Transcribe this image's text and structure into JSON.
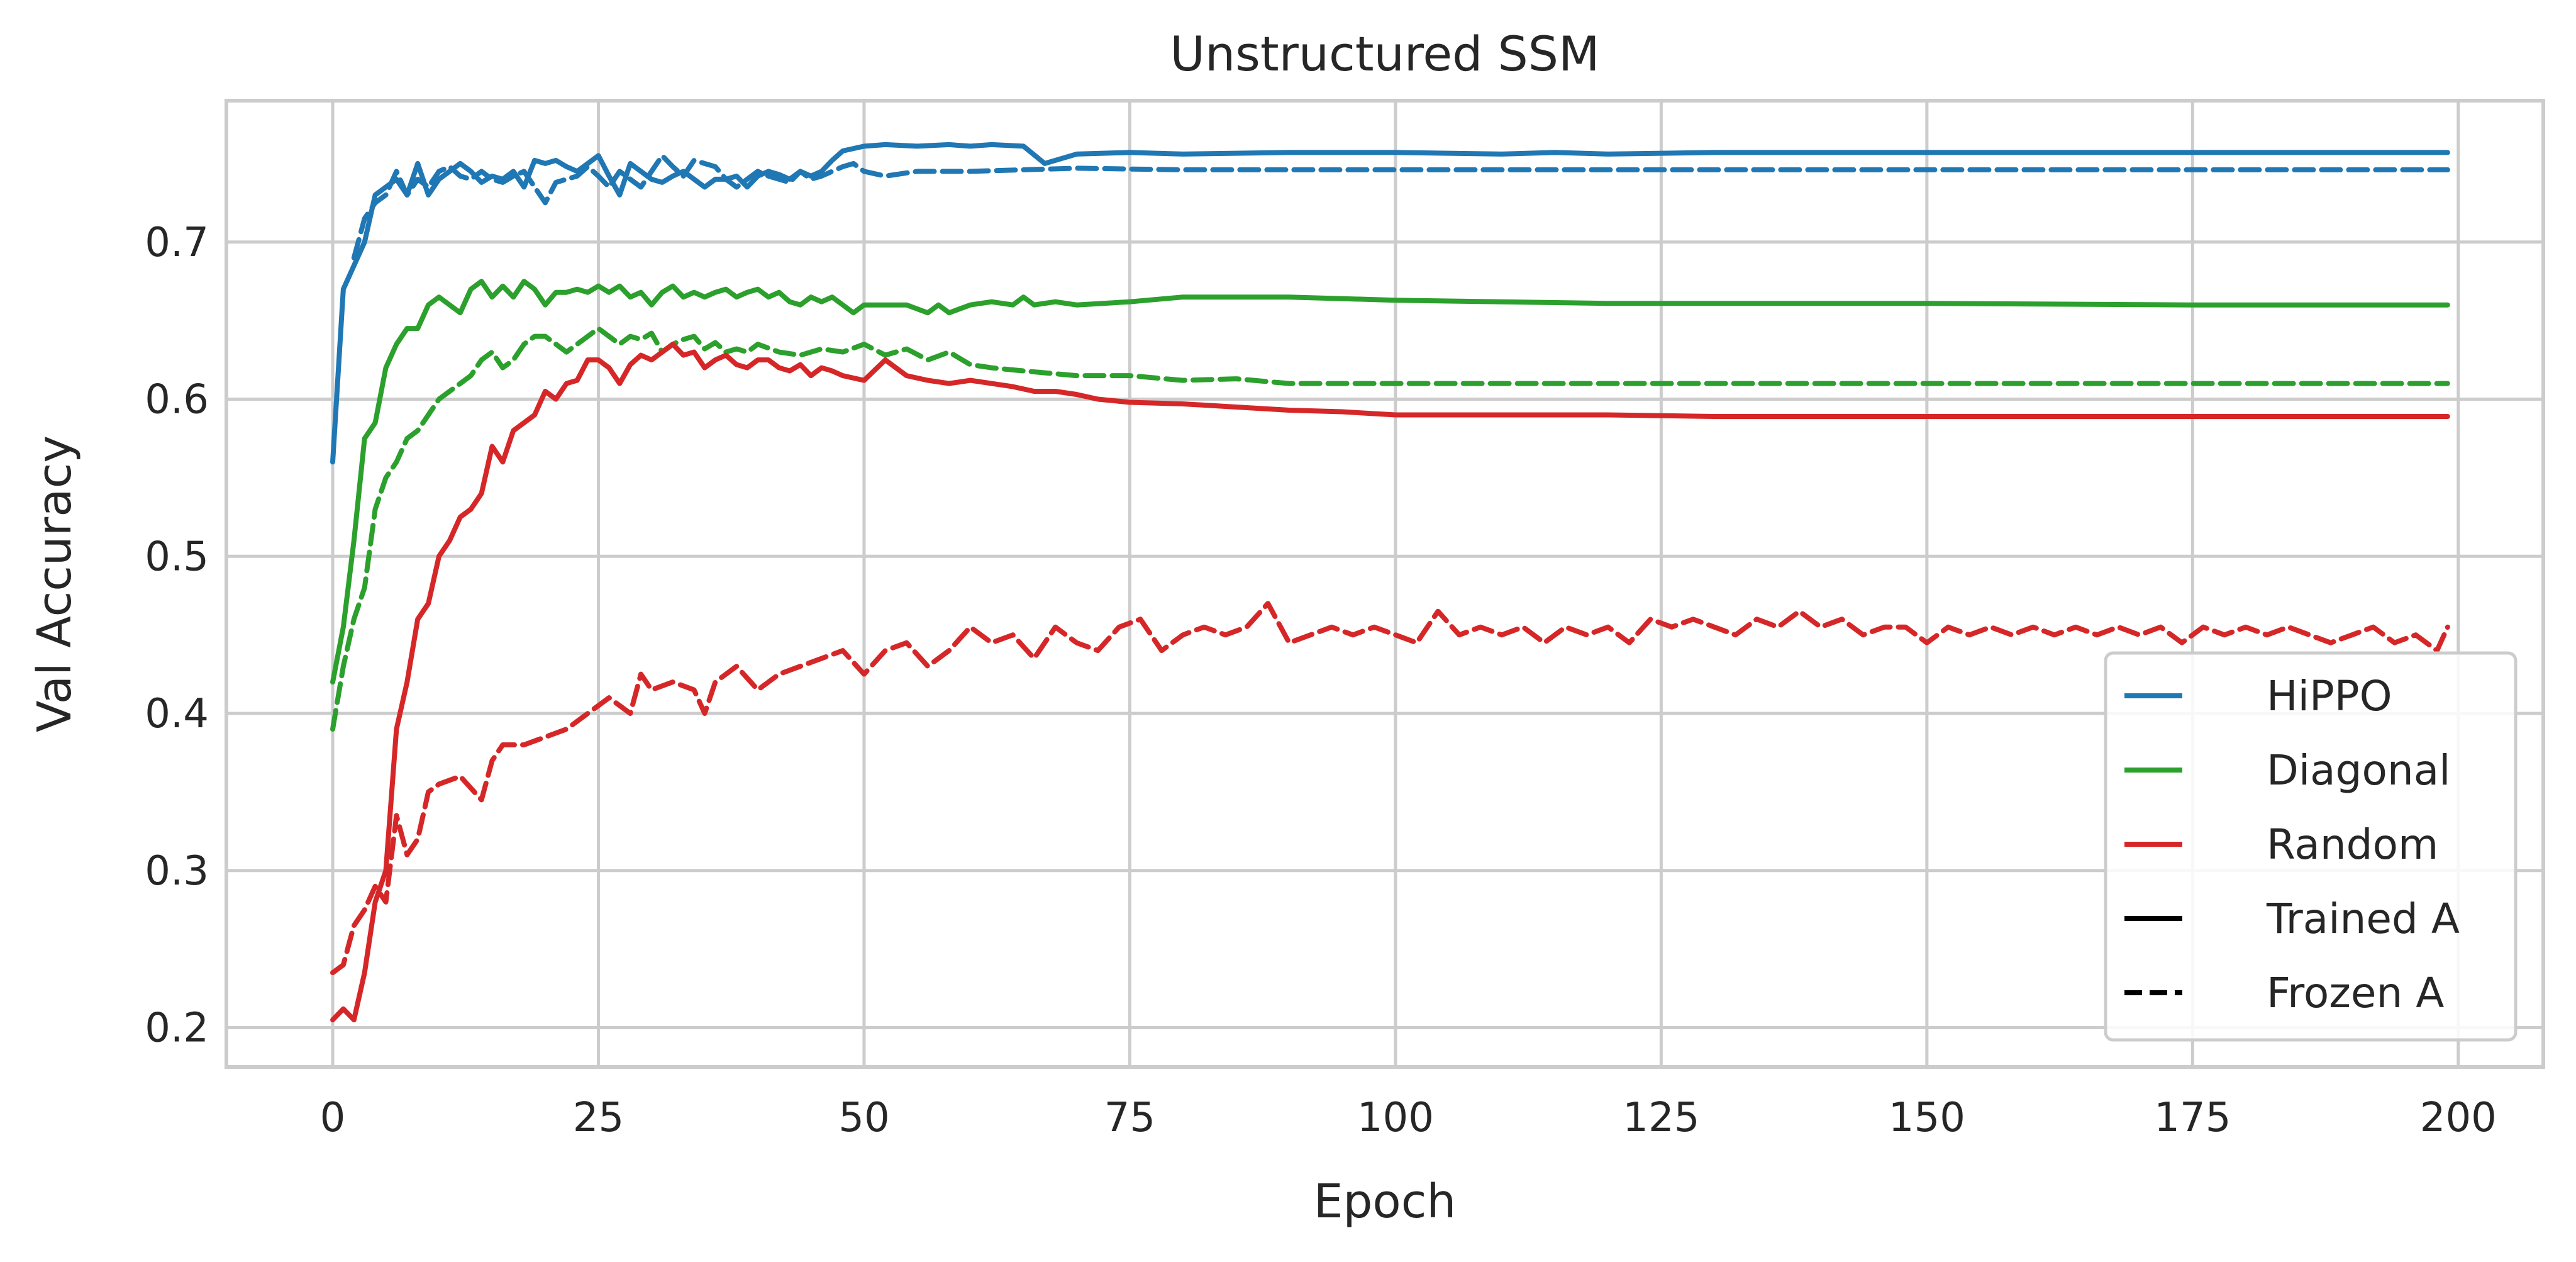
{
  "chart_data": {
    "type": "line",
    "title": "Unstructured SSM",
    "xlabel": "Epoch",
    "ylabel": "Val Accuracy",
    "xlim": [
      -10,
      208
    ],
    "ylim": [
      0.175,
      0.79
    ],
    "xticks": [
      0,
      25,
      50,
      75,
      100,
      125,
      150,
      175,
      200
    ],
    "yticks": [
      0.2,
      0.3,
      0.4,
      0.5,
      0.6,
      0.7
    ],
    "grid": true,
    "legend_position": "lower-right",
    "colors": {
      "HiPPO": "#1f77b4",
      "Diagonal": "#2ca02c",
      "Random": "#d62728",
      "black": "#000000"
    },
    "legend": [
      {
        "label": "HiPPO",
        "color": "#1f77b4",
        "style": "solid"
      },
      {
        "label": "Diagonal",
        "color": "#2ca02c",
        "style": "solid"
      },
      {
        "label": "Random",
        "color": "#d62728",
        "style": "solid"
      },
      {
        "label": "Trained A",
        "color": "#000000",
        "style": "solid"
      },
      {
        "label": "Frozen A",
        "color": "#000000",
        "style": "dashed"
      }
    ],
    "series": [
      {
        "name": "HiPPO (Trained A)",
        "color": "#1f77b4",
        "dashed": false,
        "x": [
          0,
          1,
          2,
          3,
          4,
          5,
          6,
          7,
          8,
          9,
          10,
          11,
          12,
          13,
          14,
          15,
          16,
          17,
          18,
          19,
          20,
          21,
          22,
          23,
          24,
          25,
          26,
          27,
          28,
          29,
          30,
          31,
          32,
          33,
          34,
          35,
          36,
          37,
          38,
          39,
          40,
          41,
          42,
          43,
          44,
          45,
          46,
          47,
          48,
          50,
          52,
          55,
          58,
          60,
          62,
          65,
          67,
          70,
          75,
          80,
          90,
          100,
          110,
          115,
          120,
          130,
          150,
          175,
          199
        ],
        "y": [
          0.56,
          0.67,
          0.685,
          0.7,
          0.73,
          0.735,
          0.74,
          0.73,
          0.75,
          0.73,
          0.74,
          0.745,
          0.75,
          0.745,
          0.738,
          0.742,
          0.74,
          0.745,
          0.735,
          0.752,
          0.75,
          0.752,
          0.748,
          0.745,
          0.75,
          0.755,
          0.742,
          0.73,
          0.75,
          0.745,
          0.74,
          0.738,
          0.742,
          0.745,
          0.74,
          0.735,
          0.74,
          0.74,
          0.742,
          0.735,
          0.742,
          0.745,
          0.743,
          0.74,
          0.745,
          0.742,
          0.745,
          0.752,
          0.758,
          0.761,
          0.762,
          0.761,
          0.762,
          0.761,
          0.762,
          0.761,
          0.75,
          0.756,
          0.757,
          0.756,
          0.757,
          0.757,
          0.756,
          0.757,
          0.756,
          0.757,
          0.757,
          0.757,
          0.757
        ]
      },
      {
        "name": "HiPPO (Frozen A)",
        "color": "#1f77b4",
        "dashed": true,
        "x": [
          2,
          3,
          4,
          5,
          6,
          7,
          8,
          9,
          10,
          11,
          12,
          13,
          14,
          15,
          16,
          17,
          18,
          19,
          20,
          21,
          22,
          23,
          24,
          25,
          26,
          27,
          28,
          29,
          30,
          31,
          32,
          33,
          34,
          35,
          36,
          37,
          38,
          39,
          40,
          41,
          42,
          43,
          44,
          45,
          46,
          47,
          48,
          49,
          50,
          52,
          55,
          60,
          65,
          70,
          80,
          100,
          150,
          199
        ],
        "y": [
          0.69,
          0.715,
          0.725,
          0.73,
          0.745,
          0.73,
          0.74,
          0.735,
          0.745,
          0.748,
          0.742,
          0.74,
          0.745,
          0.74,
          0.738,
          0.742,
          0.745,
          0.735,
          0.725,
          0.738,
          0.74,
          0.742,
          0.748,
          0.742,
          0.735,
          0.745,
          0.74,
          0.735,
          0.745,
          0.755,
          0.748,
          0.742,
          0.752,
          0.75,
          0.748,
          0.74,
          0.735,
          0.74,
          0.745,
          0.742,
          0.74,
          0.738,
          0.745,
          0.74,
          0.742,
          0.745,
          0.748,
          0.75,
          0.745,
          0.742,
          0.745,
          0.745,
          0.746,
          0.747,
          0.746,
          0.746,
          0.746,
          0.746
        ]
      },
      {
        "name": "Diagonal (Trained A)",
        "color": "#2ca02c",
        "dashed": false,
        "x": [
          0,
          1,
          2,
          3,
          4,
          5,
          6,
          7,
          8,
          9,
          10,
          11,
          12,
          13,
          14,
          15,
          16,
          17,
          18,
          19,
          20,
          21,
          22,
          23,
          24,
          25,
          26,
          27,
          28,
          29,
          30,
          31,
          32,
          33,
          34,
          35,
          36,
          37,
          38,
          39,
          40,
          41,
          42,
          43,
          44,
          45,
          46,
          47,
          48,
          49,
          50,
          52,
          54,
          56,
          57,
          58,
          60,
          62,
          64,
          65,
          66,
          68,
          70,
          75,
          80,
          90,
          100,
          120,
          150,
          175,
          199
        ],
        "y": [
          0.42,
          0.455,
          0.51,
          0.575,
          0.585,
          0.62,
          0.635,
          0.645,
          0.645,
          0.66,
          0.665,
          0.66,
          0.655,
          0.67,
          0.675,
          0.665,
          0.672,
          0.665,
          0.675,
          0.67,
          0.66,
          0.668,
          0.668,
          0.67,
          0.668,
          0.672,
          0.668,
          0.672,
          0.665,
          0.668,
          0.66,
          0.668,
          0.672,
          0.665,
          0.668,
          0.665,
          0.668,
          0.67,
          0.665,
          0.668,
          0.67,
          0.665,
          0.668,
          0.662,
          0.66,
          0.665,
          0.662,
          0.665,
          0.66,
          0.655,
          0.66,
          0.66,
          0.66,
          0.655,
          0.66,
          0.655,
          0.66,
          0.662,
          0.66,
          0.665,
          0.66,
          0.662,
          0.66,
          0.662,
          0.665,
          0.665,
          0.663,
          0.661,
          0.661,
          0.66,
          0.66
        ]
      },
      {
        "name": "Diagonal (Frozen A)",
        "color": "#2ca02c",
        "dashed": true,
        "x": [
          0,
          1,
          2,
          3,
          4,
          5,
          6,
          7,
          8,
          9,
          10,
          11,
          12,
          13,
          14,
          15,
          16,
          17,
          18,
          19,
          20,
          21,
          22,
          23,
          24,
          25,
          26,
          27,
          28,
          29,
          30,
          31,
          32,
          33,
          34,
          35,
          36,
          37,
          38,
          39,
          40,
          42,
          44,
          46,
          48,
          50,
          52,
          54,
          56,
          58,
          60,
          62,
          65,
          70,
          75,
          80,
          85,
          90,
          100,
          110,
          120,
          150,
          175,
          199
        ],
        "y": [
          0.39,
          0.43,
          0.46,
          0.48,
          0.53,
          0.55,
          0.56,
          0.575,
          0.58,
          0.59,
          0.6,
          0.605,
          0.61,
          0.615,
          0.625,
          0.63,
          0.62,
          0.625,
          0.635,
          0.64,
          0.64,
          0.635,
          0.63,
          0.635,
          0.64,
          0.645,
          0.64,
          0.635,
          0.64,
          0.638,
          0.642,
          0.63,
          0.635,
          0.638,
          0.64,
          0.632,
          0.636,
          0.63,
          0.632,
          0.63,
          0.635,
          0.63,
          0.628,
          0.632,
          0.63,
          0.635,
          0.628,
          0.632,
          0.625,
          0.63,
          0.622,
          0.62,
          0.618,
          0.615,
          0.615,
          0.612,
          0.613,
          0.61,
          0.61,
          0.61,
          0.61,
          0.61,
          0.61,
          0.61
        ]
      },
      {
        "name": "Random (Trained A)",
        "color": "#d62728",
        "dashed": false,
        "x": [
          0,
          1,
          2,
          3,
          4,
          5,
          6,
          7,
          8,
          9,
          10,
          11,
          12,
          13,
          14,
          15,
          16,
          17,
          18,
          19,
          20,
          21,
          22,
          23,
          24,
          25,
          26,
          27,
          28,
          29,
          30,
          31,
          32,
          33,
          34,
          35,
          36,
          37,
          38,
          39,
          40,
          41,
          42,
          43,
          44,
          45,
          46,
          47,
          48,
          50,
          52,
          54,
          56,
          58,
          60,
          62,
          64,
          66,
          68,
          70,
          72,
          75,
          80,
          85,
          90,
          95,
          100,
          110,
          120,
          130,
          150,
          175,
          199
        ],
        "y": [
          0.205,
          0.212,
          0.205,
          0.235,
          0.28,
          0.3,
          0.39,
          0.42,
          0.46,
          0.47,
          0.5,
          0.51,
          0.525,
          0.53,
          0.54,
          0.57,
          0.56,
          0.58,
          0.585,
          0.59,
          0.605,
          0.6,
          0.61,
          0.612,
          0.625,
          0.625,
          0.62,
          0.61,
          0.622,
          0.628,
          0.625,
          0.63,
          0.635,
          0.628,
          0.63,
          0.62,
          0.625,
          0.628,
          0.622,
          0.62,
          0.625,
          0.625,
          0.62,
          0.618,
          0.622,
          0.615,
          0.62,
          0.618,
          0.615,
          0.612,
          0.625,
          0.615,
          0.612,
          0.61,
          0.612,
          0.61,
          0.608,
          0.605,
          0.605,
          0.603,
          0.6,
          0.598,
          0.597,
          0.595,
          0.593,
          0.592,
          0.59,
          0.59,
          0.59,
          0.589,
          0.589,
          0.589,
          0.589
        ]
      },
      {
        "name": "Random (Frozen A)",
        "color": "#d62728",
        "dashed": true,
        "x": [
          0,
          1,
          2,
          3,
          4,
          5,
          6,
          7,
          8,
          9,
          10,
          12,
          14,
          15,
          16,
          18,
          20,
          22,
          24,
          26,
          28,
          29,
          30,
          32,
          34,
          35,
          36,
          38,
          40,
          42,
          44,
          46,
          48,
          50,
          52,
          54,
          56,
          58,
          60,
          62,
          64,
          66,
          68,
          70,
          72,
          74,
          76,
          78,
          80,
          82,
          84,
          86,
          88,
          90,
          92,
          94,
          96,
          98,
          100,
          102,
          104,
          106,
          108,
          110,
          112,
          114,
          116,
          118,
          120,
          122,
          124,
          126,
          128,
          130,
          132,
          134,
          136,
          138,
          140,
          142,
          144,
          146,
          148,
          150,
          152,
          154,
          156,
          158,
          160,
          162,
          164,
          166,
          168,
          170,
          172,
          174,
          176,
          178,
          180,
          182,
          184,
          186,
          188,
          190,
          192,
          194,
          196,
          198,
          199
        ],
        "y": [
          0.235,
          0.24,
          0.265,
          0.275,
          0.29,
          0.28,
          0.335,
          0.31,
          0.32,
          0.35,
          0.355,
          0.36,
          0.345,
          0.37,
          0.38,
          0.38,
          0.385,
          0.39,
          0.4,
          0.41,
          0.4,
          0.425,
          0.415,
          0.42,
          0.415,
          0.4,
          0.42,
          0.43,
          0.415,
          0.425,
          0.43,
          0.435,
          0.44,
          0.425,
          0.44,
          0.445,
          0.43,
          0.44,
          0.455,
          0.445,
          0.45,
          0.435,
          0.455,
          0.445,
          0.44,
          0.455,
          0.46,
          0.44,
          0.45,
          0.455,
          0.45,
          0.455,
          0.47,
          0.445,
          0.45,
          0.455,
          0.45,
          0.455,
          0.45,
          0.445,
          0.465,
          0.45,
          0.455,
          0.45,
          0.455,
          0.445,
          0.455,
          0.45,
          0.455,
          0.445,
          0.46,
          0.455,
          0.46,
          0.455,
          0.45,
          0.46,
          0.455,
          0.465,
          0.455,
          0.46,
          0.45,
          0.455,
          0.455,
          0.445,
          0.455,
          0.45,
          0.455,
          0.45,
          0.455,
          0.45,
          0.455,
          0.45,
          0.455,
          0.45,
          0.455,
          0.445,
          0.455,
          0.45,
          0.455,
          0.45,
          0.455,
          0.45,
          0.445,
          0.45,
          0.455,
          0.445,
          0.45,
          0.44,
          0.455
        ]
      }
    ]
  }
}
